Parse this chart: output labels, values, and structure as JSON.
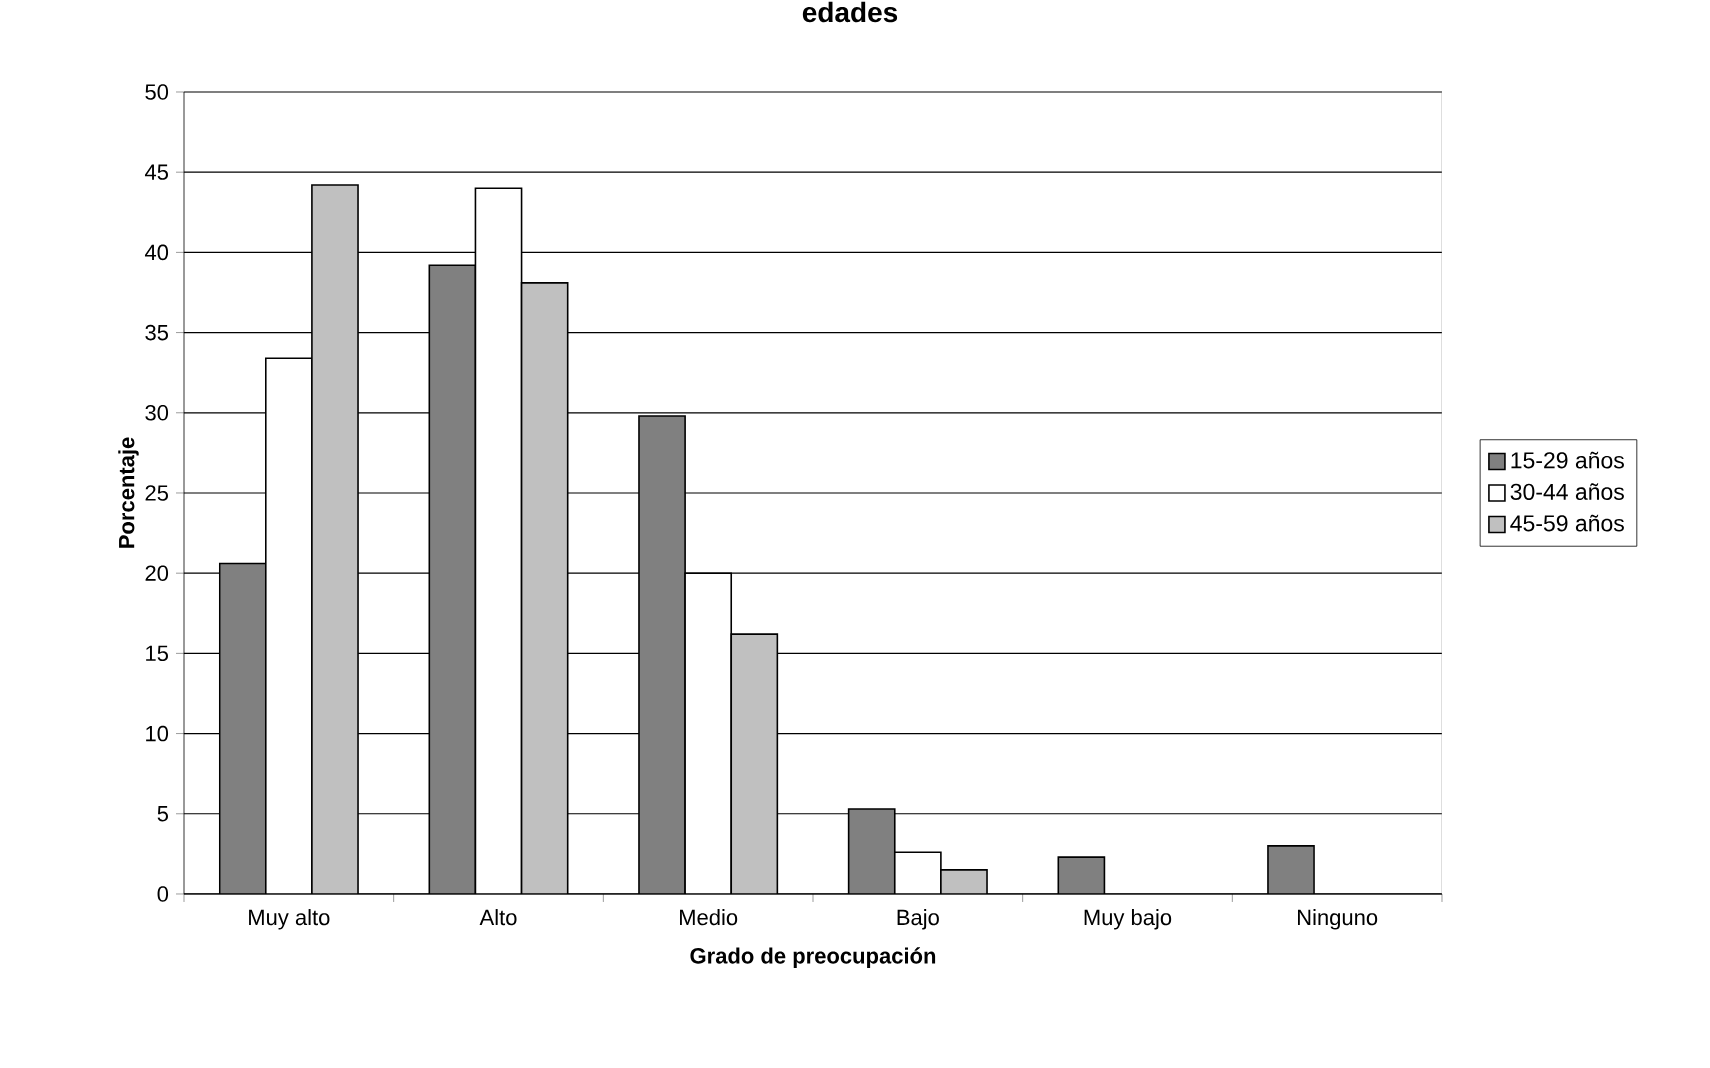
{
  "chart_data": {
    "type": "bar",
    "title": "edades",
    "xlabel": "Grado de preocupación",
    "ylabel": "Porcentaje",
    "categories": [
      "Muy alto",
      "Alto",
      "Medio",
      "Bajo",
      "Muy bajo",
      "Ninguno"
    ],
    "series": [
      {
        "name": "15-29 años",
        "color": "#808080",
        "values": [
          20.6,
          39.2,
          29.8,
          5.3,
          2.3,
          3.0
        ]
      },
      {
        "name": "30-44 años",
        "color": "#ffffff",
        "values": [
          33.4,
          44.0,
          20.0,
          2.6,
          null,
          null
        ]
      },
      {
        "name": "45-59 años",
        "color": "#c0c0c0",
        "values": [
          44.2,
          38.1,
          16.2,
          1.5,
          null,
          null
        ]
      }
    ],
    "ylim": [
      0,
      50
    ],
    "yticks": [
      0,
      5,
      10,
      15,
      20,
      25,
      30,
      35,
      40,
      45,
      50
    ],
    "grid": "y",
    "legend": "right"
  }
}
